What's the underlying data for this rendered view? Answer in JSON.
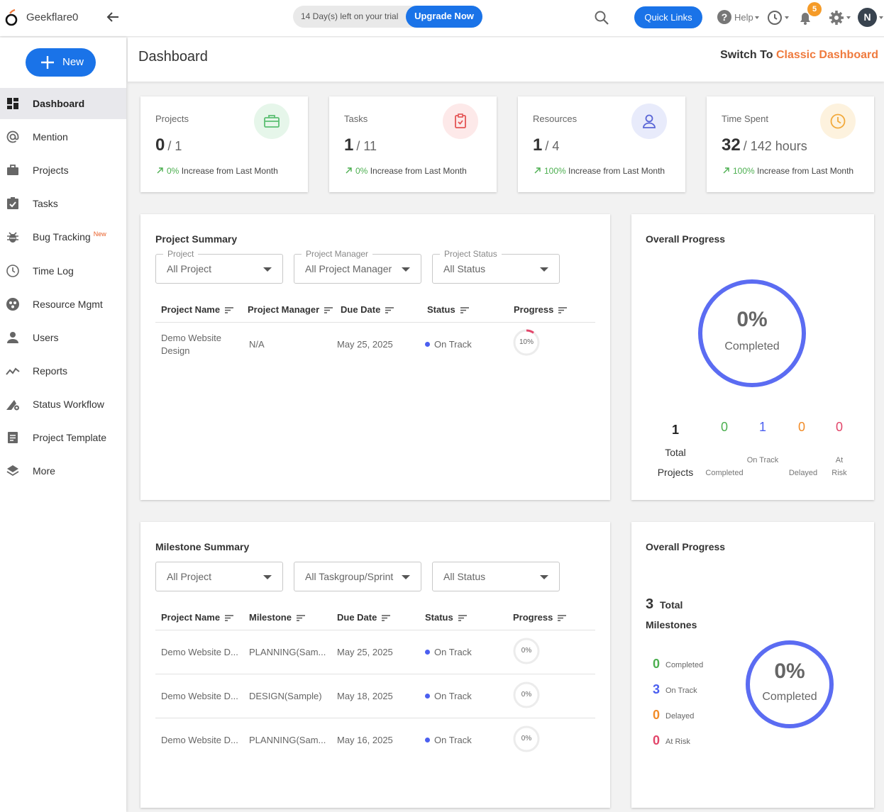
{
  "app": {
    "name": "Geekflare0",
    "trial_text": "14 Day(s) left on your trial",
    "upgrade_label": "Upgrade Now",
    "quick_links_label": "Quick Links",
    "help_label": "Help",
    "notification_count": "5",
    "user_initial": "N",
    "new_label": "New"
  },
  "sidebar": {
    "items": [
      {
        "label": "Dashboard",
        "icon": "dashboard-icon",
        "active": true
      },
      {
        "label": "Mention",
        "icon": "at-icon"
      },
      {
        "label": "Projects",
        "icon": "briefcase-icon"
      },
      {
        "label": "Tasks",
        "icon": "checkbox-icon"
      },
      {
        "label": "Bug Tracking",
        "icon": "bug-icon",
        "tag": "New"
      },
      {
        "label": "Time Log",
        "icon": "clock-icon"
      },
      {
        "label": "Resource Mgmt",
        "icon": "resource-icon"
      },
      {
        "label": "Users",
        "icon": "user-icon"
      },
      {
        "label": "Reports",
        "icon": "trend-icon"
      },
      {
        "label": "Status Workflow",
        "icon": "workflow-icon"
      },
      {
        "label": "Project Template",
        "icon": "template-icon"
      },
      {
        "label": "More",
        "icon": "layers-icon"
      }
    ]
  },
  "header": {
    "title": "Dashboard",
    "switch_prefix": "Switch To",
    "switch_link": "Classic Dashboard"
  },
  "stats": [
    {
      "label": "Projects",
      "value": "0",
      "total": "/ 1",
      "change": "0%",
      "change_text": "Increase from Last Month",
      "icon": "briefcase-icon",
      "icon_bg": "#e6f6ea",
      "icon_color": "#5cbf73"
    },
    {
      "label": "Tasks",
      "value": "1",
      "total": "/ 11",
      "change": "0%",
      "change_text": "Increase from Last Month",
      "icon": "task-icon",
      "icon_bg": "#fde9e9",
      "icon_color": "#e45454"
    },
    {
      "label": "Resources",
      "value": "1",
      "total": "/ 4",
      "change": "100%",
      "change_text": "Increase from Last Month",
      "icon": "person-icon",
      "icon_bg": "#e8ebfb",
      "icon_color": "#5a66d6"
    },
    {
      "label": "Time Spent",
      "value": "32",
      "total": "/ 142 hours",
      "change": "100%",
      "change_text": "Increase from Last Month",
      "icon": "clock-icon",
      "icon_bg": "#fdf2de",
      "icon_color": "#f2a93b"
    }
  ],
  "project_summary": {
    "title": "Project Summary",
    "filters": [
      {
        "legend": "Project",
        "value": "All Project"
      },
      {
        "legend": "Project Manager",
        "value": "All Project Manager"
      },
      {
        "legend": "Project Status",
        "value": "All Status"
      }
    ],
    "columns": [
      "Project Name",
      "Project Manager",
      "Due Date",
      "Status",
      "Progress"
    ],
    "rows": [
      {
        "name_line1": "Demo Website",
        "name_line2": "Design",
        "manager": "N/A",
        "due": "May 25, 2025",
        "status": "On Track",
        "progress": "10%",
        "progress_value": 10
      }
    ]
  },
  "overall_progress": {
    "title": "Overall Progress",
    "percent": "0%",
    "completed_label": "Completed",
    "total": "1",
    "total_label1": "Total",
    "total_label2": "Projects",
    "counts": [
      {
        "value": "0",
        "label": "Completed",
        "color": "#4caf50"
      },
      {
        "value": "1",
        "label": "On Track",
        "color": "#4b5ff0"
      },
      {
        "value": "0",
        "label": "Delayed",
        "color": "#f28c28"
      },
      {
        "value": "0",
        "label": "At Risk",
        "color": "#e2466a"
      }
    ]
  },
  "milestone_summary": {
    "title": "Milestone Summary",
    "filters": [
      {
        "value": "All Project"
      },
      {
        "value": "All Taskgroup/Sprint"
      },
      {
        "value": "All Status"
      }
    ],
    "columns": [
      "Project Name",
      "Milestone",
      "Due Date",
      "Status",
      "Progress"
    ],
    "rows": [
      {
        "name": "Demo Website D...",
        "milestone": "PLANNING(Sam...",
        "due": "May 25, 2025",
        "status": "On Track",
        "progress": "0%",
        "progress_value": 0
      },
      {
        "name": "Demo Website D...",
        "milestone": "DESIGN(Sample)",
        "due": "May 18, 2025",
        "status": "On Track",
        "progress": "0%",
        "progress_value": 0
      },
      {
        "name": "Demo Website D...",
        "milestone": "PLANNING(Sam...",
        "due": "May 16, 2025",
        "status": "On Track",
        "progress": "0%",
        "progress_value": 0
      }
    ]
  },
  "milestone_progress": {
    "title": "Overall Progress",
    "total": "3",
    "total_label1": "Total",
    "total_label2": "Milestones",
    "percent": "0%",
    "completed_label": "Completed",
    "counts": [
      {
        "value": "0",
        "label": "Completed",
        "color": "#4caf50"
      },
      {
        "value": "3",
        "label": "On Track",
        "color": "#4b5ff0"
      },
      {
        "value": "0",
        "label": "Delayed",
        "color": "#f28c28"
      },
      {
        "value": "0",
        "label": "At Risk",
        "color": "#e2466a"
      }
    ]
  },
  "colors": {
    "accent": "#1a73e8",
    "ring": "#5b6cf2",
    "switch_link": "#ef7a3d"
  }
}
